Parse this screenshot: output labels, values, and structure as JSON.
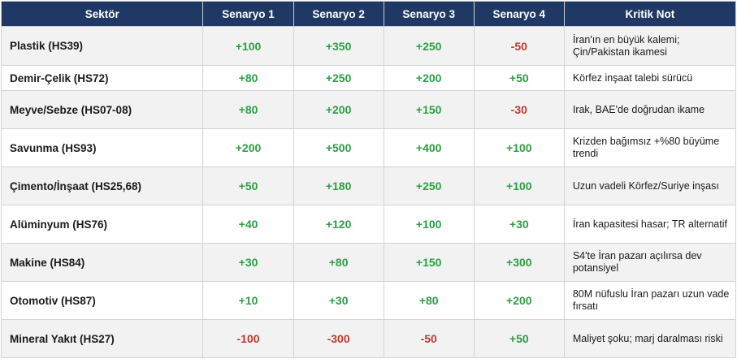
{
  "table": {
    "headers": [
      "Sektör",
      "Senaryo 1",
      "Senaryo 2",
      "Senaryo 3",
      "Senaryo 4",
      "Kritik Not"
    ],
    "rows": [
      {
        "sector": "Plastik (HS39)",
        "s1": "+100",
        "s2": "+350",
        "s3": "+250",
        "s4": "-50",
        "note": "İran'ın en büyük kalemi; Çin/Pakistan ikamesi",
        "height": 48
      },
      {
        "sector": "Demir-Çelik (HS72)",
        "s1": "+80",
        "s2": "+250",
        "s3": "+200",
        "s4": "+50",
        "note": "Körfez inşaat talebi sürücü",
        "height": 31
      },
      {
        "sector": "Meyve/Sebze (HS07-08)",
        "s1": "+80",
        "s2": "+200",
        "s3": "+150",
        "s4": "-30",
        "note": "Irak, BAE'de doğrudan ikame",
        "height": 47
      },
      {
        "sector": "Savunma (HS93)",
        "s1": "+200",
        "s2": "+500",
        "s3": "+400",
        "s4": "+100",
        "note": "Krizden bağımsız +%80 büyüme trendi",
        "height": 47
      },
      {
        "sector": "Çimento/İnşaat (HS25,68)",
        "s1": "+50",
        "s2": "+180",
        "s3": "+250",
        "s4": "+100",
        "note": "Uzun vadeli Körfez/Suriye inşası",
        "height": 47
      },
      {
        "sector": "Alüminyum (HS76)",
        "s1": "+40",
        "s2": "+120",
        "s3": "+100",
        "s4": "+30",
        "note": "İran kapasitesi hasar; TR alternatif",
        "height": 47
      },
      {
        "sector": "Makine (HS84)",
        "s1": "+30",
        "s2": "+80",
        "s3": "+150",
        "s4": "+300",
        "note": "S4'te İran pazarı açılırsa dev potansiyel",
        "height": 47
      },
      {
        "sector": "Otomotiv (HS87)",
        "s1": "+10",
        "s2": "+30",
        "s3": "+80",
        "s4": "+200",
        "note": "80M nüfuslu İran pazarı uzun vade fırsatı",
        "height": 47
      },
      {
        "sector": "Mineral Yakıt (HS27)",
        "s1": "-100",
        "s2": "-300",
        "s3": "-50",
        "s4": "+50",
        "note": "Maliyet şoku; marj daralması riski",
        "height": 47
      }
    ]
  },
  "colors": {
    "header_bg": "#1f3864",
    "positive": "#2e9e45",
    "negative": "#c0392b"
  }
}
